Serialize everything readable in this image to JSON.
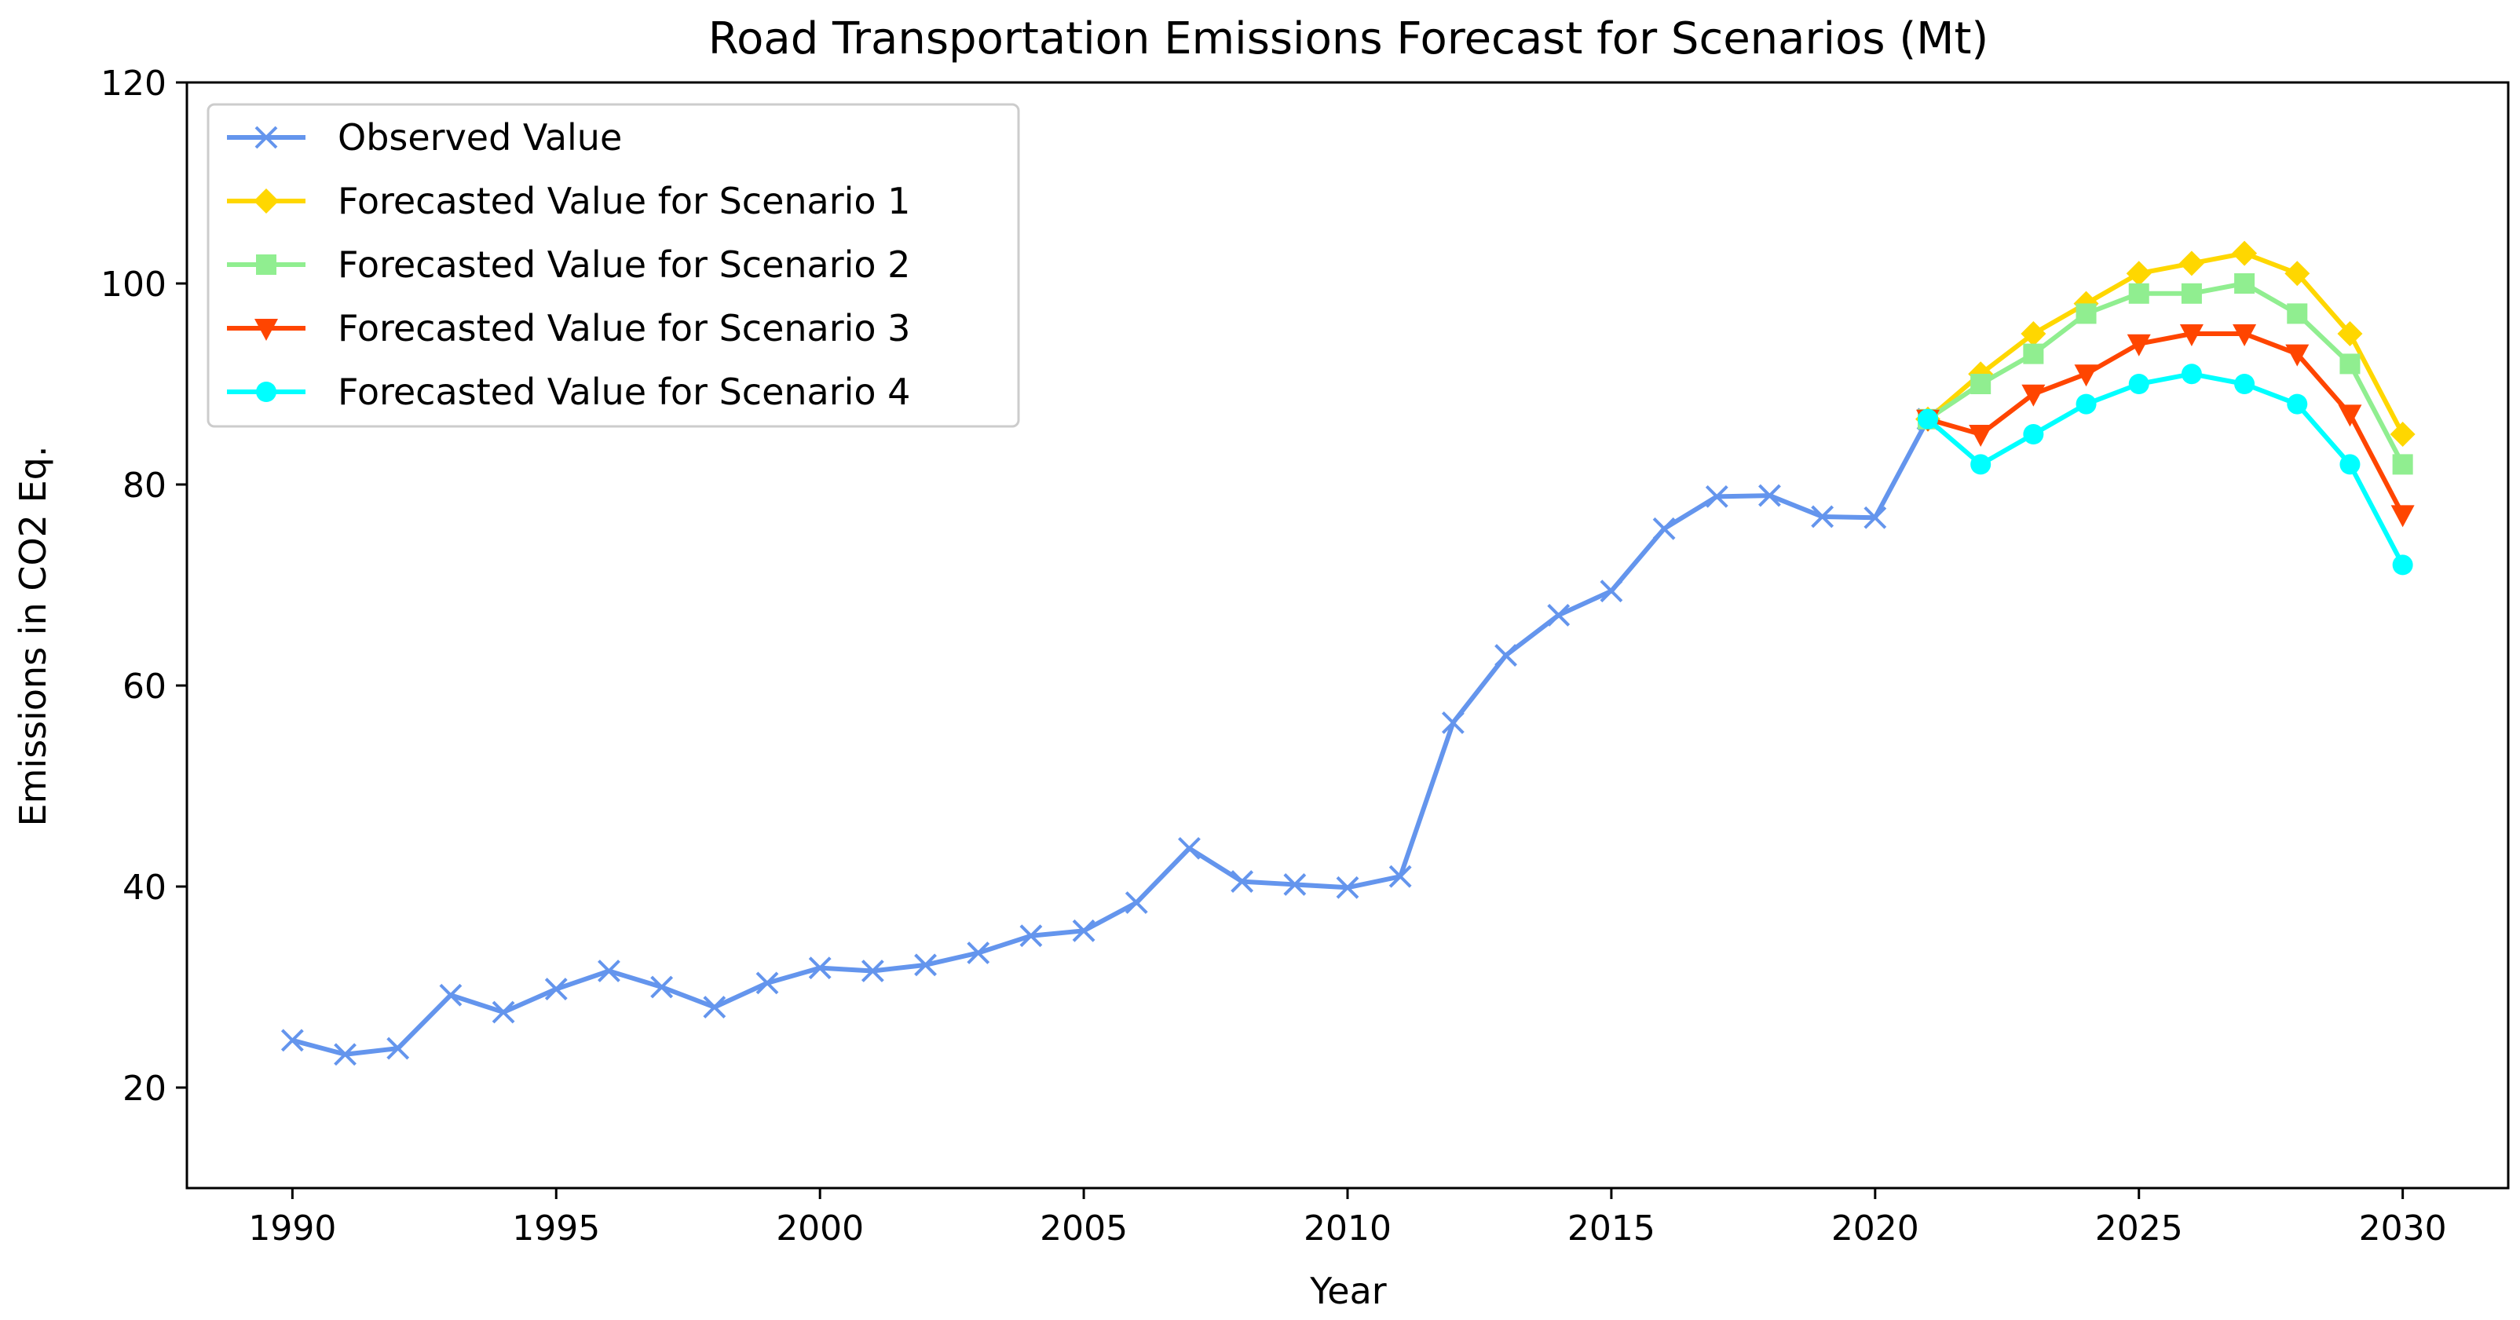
{
  "chart_data": {
    "type": "line",
    "title": "Road Transportation Emissions Forecast for Scenarios (Mt)",
    "xlabel": "Year",
    "ylabel": "Emissions in CO2 Eq.",
    "xlim": [
      1988,
      2032
    ],
    "ylim": [
      10,
      120
    ],
    "xticks": [
      1990,
      1995,
      2000,
      2005,
      2010,
      2015,
      2020,
      2025,
      2030
    ],
    "yticks": [
      20,
      40,
      60,
      80,
      100,
      120
    ],
    "grid": false,
    "legend_position": "top-left",
    "series": [
      {
        "name": "Observed Value",
        "color": "#6495ED",
        "marker": "x",
        "x": [
          1990,
          1991,
          1992,
          1993,
          1994,
          1995,
          1996,
          1997,
          1998,
          1999,
          2000,
          2001,
          2002,
          2003,
          2004,
          2005,
          2006,
          2007,
          2008,
          2009,
          2010,
          2011,
          2012,
          2013,
          2014,
          2015,
          2016,
          2017,
          2018,
          2019,
          2020,
          2021
        ],
        "values": [
          24.7,
          23.3,
          23.9,
          29.2,
          27.5,
          29.8,
          31.6,
          30.0,
          28.0,
          30.4,
          31.9,
          31.6,
          32.2,
          33.4,
          35.1,
          35.6,
          38.4,
          43.8,
          40.5,
          40.2,
          39.9,
          41.0,
          56.3,
          63.0,
          67.0,
          69.4,
          75.6,
          78.8,
          78.9,
          76.8,
          76.7,
          86.5
        ]
      },
      {
        "name": "Forecasted Value for Scenario 1",
        "color": "#FFD700",
        "marker": "diamond",
        "x": [
          2021,
          2022,
          2023,
          2024,
          2025,
          2026,
          2027,
          2028,
          2029,
          2030
        ],
        "values": [
          86.5,
          91,
          95,
          98,
          101,
          102,
          103,
          101,
          95,
          85
        ]
      },
      {
        "name": "Forecasted Value for Scenario 2",
        "color": "#90EE90",
        "marker": "square",
        "x": [
          2021,
          2022,
          2023,
          2024,
          2025,
          2026,
          2027,
          2028,
          2029,
          2030
        ],
        "values": [
          86.5,
          90,
          93,
          97,
          99,
          99,
          100,
          97,
          92,
          82
        ]
      },
      {
        "name": "Forecasted Value for Scenario 3",
        "color": "#FF4500",
        "marker": "triangle-down",
        "x": [
          2021,
          2022,
          2023,
          2024,
          2025,
          2026,
          2027,
          2028,
          2029,
          2030
        ],
        "values": [
          86.5,
          85,
          89,
          91,
          94,
          95,
          95,
          93,
          87,
          77
        ]
      },
      {
        "name": "Forecasted Value for Scenario 4",
        "color": "#00FFFF",
        "marker": "circle",
        "x": [
          2021,
          2022,
          2023,
          2024,
          2025,
          2026,
          2027,
          2028,
          2029,
          2030
        ],
        "values": [
          86.5,
          82,
          85,
          88,
          90,
          91,
          90,
          88,
          82,
          72
        ]
      }
    ]
  }
}
